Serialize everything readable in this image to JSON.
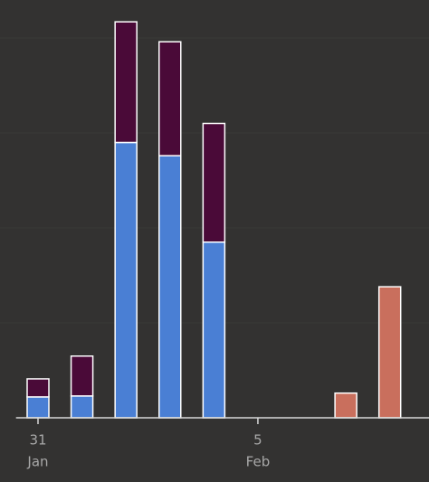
{
  "chart_data": {
    "type": "stacked_bar",
    "categories": [
      "31",
      null,
      null,
      null,
      null,
      "5",
      null,
      null,
      null
    ],
    "category_sublabels": [
      "Jan",
      null,
      null,
      null,
      null,
      "Feb",
      null,
      null,
      null
    ],
    "series": [
      {
        "name": null,
        "color": "#4a7fd4",
        "values": [
          2.2,
          2.3,
          29.0,
          27.6,
          18.5,
          null,
          null,
          null,
          null
        ]
      },
      {
        "name": null,
        "color": "#4a0a38",
        "values": [
          1.9,
          4.2,
          12.7,
          12.0,
          12.5,
          null,
          null,
          null,
          null
        ]
      },
      {
        "name": null,
        "color": "#c96f5d",
        "values": [
          null,
          null,
          null,
          null,
          null,
          null,
          null,
          2.6,
          13.8
        ]
      }
    ],
    "ylim": [
      0,
      44
    ],
    "yticks": [
      10,
      20,
      30,
      40
    ],
    "grid": true
  }
}
